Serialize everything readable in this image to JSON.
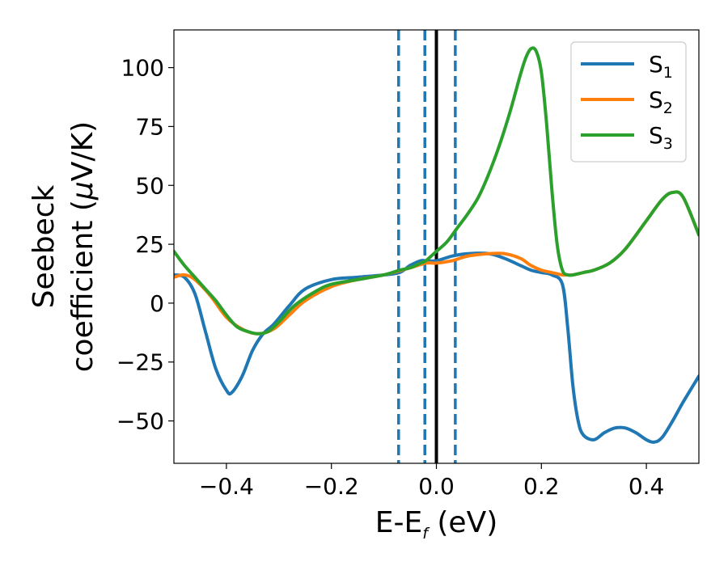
{
  "chart_data": {
    "type": "line",
    "xlabel": {
      "main": "E-E",
      "sub": "f",
      "unit": " (eV)"
    },
    "ylabel": {
      "line1": "Seebeck",
      "line2_text": "coefficient  (",
      "mu": "μ",
      "unit": "V/K)"
    },
    "xlim": [
      -0.5,
      0.5
    ],
    "ylim": [
      -68,
      116
    ],
    "xticks": [
      -0.4,
      -0.2,
      0.0,
      0.2,
      0.4
    ],
    "xtick_labels": [
      "−0.4",
      "−0.2",
      "0.0",
      "0.2",
      "0.4"
    ],
    "yticks": [
      -50,
      -25,
      0,
      25,
      50,
      75,
      100
    ],
    "ytick_labels": [
      "−50",
      "−25",
      "0",
      "25",
      "50",
      "75",
      "100"
    ],
    "vlines": [
      {
        "x": -0.072,
        "style": "dashed",
        "color": "#1f77b4"
      },
      {
        "x": -0.022,
        "style": "dashed",
        "color": "#1f77b4"
      },
      {
        "x": 0.0,
        "style": "solid",
        "color": "#000000"
      },
      {
        "x": 0.036,
        "style": "dashed",
        "color": "#1f77b4"
      }
    ],
    "legend_position": "top-right",
    "series": [
      {
        "name": "S",
        "sub": "1",
        "color": "#1f77b4",
        "x": [
          -0.5,
          -0.48,
          -0.46,
          -0.44,
          -0.42,
          -0.4,
          -0.39,
          -0.37,
          -0.35,
          -0.33,
          -0.31,
          -0.28,
          -0.25,
          -0.2,
          -0.15,
          -0.1,
          -0.07,
          -0.05,
          -0.03,
          -0.02,
          0.0,
          0.03,
          0.06,
          0.1,
          0.13,
          0.16,
          0.18,
          0.2,
          0.22,
          0.24,
          0.25,
          0.26,
          0.27,
          0.28,
          0.3,
          0.32,
          0.34,
          0.36,
          0.38,
          0.4,
          0.415,
          0.43,
          0.45,
          0.47,
          0.5
        ],
        "y": [
          12,
          11,
          4,
          -12,
          -28,
          -37,
          -38,
          -31,
          -20,
          -13,
          -9,
          -1,
          6,
          10,
          11,
          12,
          13,
          16,
          18,
          18,
          18,
          20,
          21,
          21,
          19,
          16,
          14,
          13,
          12,
          8,
          -10,
          -35,
          -50,
          -56,
          -58,
          -55,
          -53,
          -53,
          -55,
          -58,
          -59,
          -57,
          -50,
          -42,
          -31
        ]
      },
      {
        "name": "S",
        "sub": "2",
        "color": "#ff7f0e",
        "x": [
          -0.5,
          -0.48,
          -0.46,
          -0.43,
          -0.4,
          -0.37,
          -0.34,
          -0.31,
          -0.28,
          -0.25,
          -0.2,
          -0.15,
          -0.1,
          -0.05,
          -0.02,
          0.0,
          0.03,
          0.06,
          0.1,
          0.13,
          0.16,
          0.18,
          0.2,
          0.22,
          0.24,
          0.25,
          0.26,
          0.28,
          0.3,
          0.33,
          0.36,
          0.4,
          0.43,
          0.45,
          0.47,
          0.5
        ],
        "y": [
          11,
          12,
          10,
          3,
          -6,
          -11,
          -13,
          -11,
          -5,
          1,
          7,
          10,
          12,
          15,
          17,
          17,
          18,
          20,
          21,
          21,
          19,
          16,
          14,
          13,
          12,
          12,
          12,
          13,
          14,
          17,
          23,
          35,
          44,
          47,
          45,
          29
        ]
      },
      {
        "name": "S",
        "sub": "3",
        "color": "#2ca02c",
        "x": [
          -0.5,
          -0.48,
          -0.46,
          -0.44,
          -0.42,
          -0.4,
          -0.38,
          -0.36,
          -0.34,
          -0.32,
          -0.3,
          -0.27,
          -0.23,
          -0.2,
          -0.15,
          -0.1,
          -0.07,
          -0.05,
          -0.03,
          -0.02,
          0.0,
          0.02,
          0.04,
          0.06,
          0.08,
          0.1,
          0.12,
          0.14,
          0.16,
          0.17,
          0.18,
          0.19,
          0.2,
          0.21,
          0.22,
          0.23,
          0.24,
          0.25,
          0.26,
          0.28,
          0.3,
          0.33,
          0.36,
          0.4,
          0.43,
          0.45,
          0.47,
          0.5
        ],
        "y": [
          22,
          16,
          11,
          6,
          1,
          -5,
          -10,
          -12,
          -13,
          -12,
          -8,
          -1,
          5,
          8,
          10,
          12,
          14,
          15,
          17,
          18,
          22,
          26,
          32,
          38,
          45,
          55,
          67,
          81,
          97,
          104,
          108,
          107,
          98,
          76,
          48,
          25,
          14,
          12,
          12,
          13,
          14,
          17,
          23,
          35,
          44,
          47,
          45,
          29
        ]
      }
    ]
  }
}
